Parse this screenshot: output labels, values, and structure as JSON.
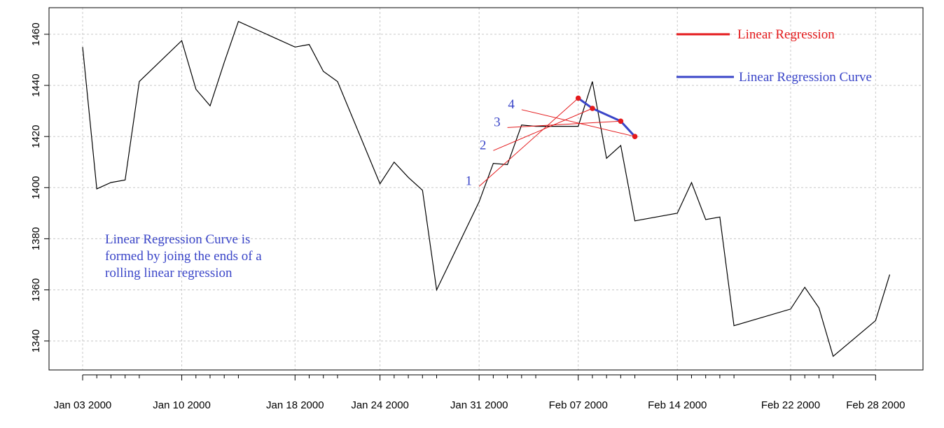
{
  "chart_data": {
    "type": "line",
    "title": "",
    "xlabel": "",
    "ylabel": "",
    "ylim": [
      1328,
      1470
    ],
    "y_ticks": [
      1340,
      1360,
      1380,
      1400,
      1420,
      1440,
      1460
    ],
    "x_ticks": [
      {
        "date": "2000-01-03",
        "label": "Jan 03 2000"
      },
      {
        "date": "2000-01-10",
        "label": "Jan 10 2000"
      },
      {
        "date": "2000-01-18",
        "label": "Jan 18 2000"
      },
      {
        "date": "2000-01-24",
        "label": "Jan 24 2000"
      },
      {
        "date": "2000-01-31",
        "label": "Jan 31 2000"
      },
      {
        "date": "2000-02-07",
        "label": "Feb 07 2000"
      },
      {
        "date": "2000-02-14",
        "label": "Feb 14 2000"
      },
      {
        "date": "2000-02-22",
        "label": "Feb 22 2000"
      },
      {
        "date": "2000-02-28",
        "label": "Feb 28 2000"
      }
    ],
    "minor_ticks": [
      "2000-01-04",
      "2000-01-05",
      "2000-01-06",
      "2000-01-07",
      "2000-01-11",
      "2000-01-12",
      "2000-01-13",
      "2000-01-14",
      "2000-01-19",
      "2000-01-20",
      "2000-01-21",
      "2000-01-25",
      "2000-01-26",
      "2000-01-27",
      "2000-01-28",
      "2000-02-01",
      "2000-02-02",
      "2000-02-03",
      "2000-02-04",
      "2000-02-08",
      "2000-02-09",
      "2000-02-10",
      "2000-02-11",
      "2000-02-15",
      "2000-02-16",
      "2000-02-17",
      "2000-02-18",
      "2000-02-23",
      "2000-02-24",
      "2000-02-25"
    ],
    "grid": true,
    "series": [
      {
        "color": "#000000",
        "points": [
          [
            "2000-01-03",
            1455
          ],
          [
            "2000-01-04",
            1399.5
          ],
          [
            "2000-01-05",
            1402
          ],
          [
            "2000-01-06",
            1403
          ],
          [
            "2000-01-07",
            1441.5
          ],
          [
            "2000-01-10",
            1457.5
          ],
          [
            "2000-01-11",
            1438.5
          ],
          [
            "2000-01-12",
            1432
          ],
          [
            "2000-01-13",
            1449
          ],
          [
            "2000-01-14",
            1465
          ],
          [
            "2000-01-18",
            1455
          ],
          [
            "2000-01-19",
            1456
          ],
          [
            "2000-01-20",
            1445.5
          ],
          [
            "2000-01-21",
            1441.5
          ],
          [
            "2000-01-24",
            1401.5
          ],
          [
            "2000-01-25",
            1410
          ],
          [
            "2000-01-26",
            1404
          ],
          [
            "2000-01-27",
            1399
          ],
          [
            "2000-01-28",
            1360
          ],
          [
            "2000-01-31",
            1394.5
          ],
          [
            "2000-02-01",
            1409.5
          ],
          [
            "2000-02-02",
            1409
          ],
          [
            "2000-02-03",
            1424.5
          ],
          [
            "2000-02-04",
            1424
          ],
          [
            "2000-02-07",
            1424
          ],
          [
            "2000-02-08",
            1441.5
          ],
          [
            "2000-02-09",
            1411.5
          ],
          [
            "2000-02-10",
            1416.5
          ],
          [
            "2000-02-11",
            1387
          ],
          [
            "2000-02-14",
            1390
          ],
          [
            "2000-02-15",
            1402
          ],
          [
            "2000-02-16",
            1387.5
          ],
          [
            "2000-02-17",
            1388.5
          ],
          [
            "2000-02-18",
            1346
          ],
          [
            "2000-02-22",
            1352.5
          ],
          [
            "2000-02-23",
            1361
          ],
          [
            "2000-02-24",
            1353
          ],
          [
            "2000-02-25",
            1334
          ],
          [
            "2000-02-28",
            1348
          ],
          [
            "2000-02-29",
            1366
          ]
        ]
      }
    ],
    "regression_lines": [
      {
        "label": "1",
        "from": [
          "2000-01-31",
          1400.5
        ],
        "to": [
          "2000-02-07",
          1435
        ]
      },
      {
        "label": "2",
        "from": [
          "2000-02-01",
          1414.5
        ],
        "to": [
          "2000-02-08",
          1431
        ]
      },
      {
        "label": "3",
        "from": [
          "2000-02-02",
          1423.5
        ],
        "to": [
          "2000-02-10",
          1426
        ]
      },
      {
        "label": "4",
        "from": [
          "2000-02-03",
          1430.5
        ],
        "to": [
          "2000-02-11",
          1420
        ]
      }
    ],
    "curve_points": [
      [
        "2000-02-07",
        1435
      ],
      [
        "2000-02-08",
        1431
      ],
      [
        "2000-02-10",
        1426
      ],
      [
        "2000-02-11",
        1420
      ]
    ],
    "legend": {
      "position": "top-right",
      "items": [
        {
          "label": "Linear Regression",
          "color": "#e41a1c"
        },
        {
          "label": "Linear Regression Curve",
          "color": "#3a45c8"
        }
      ]
    },
    "annotation_lines": [
      "Linear Regression Curve is",
      "formed by joing the ends of a",
      "rolling linear regression"
    ],
    "colors": {
      "regression": "#e41a1c",
      "curve": "#3a45c8",
      "price": "#000000",
      "grid": "#c8c8c8"
    }
  }
}
